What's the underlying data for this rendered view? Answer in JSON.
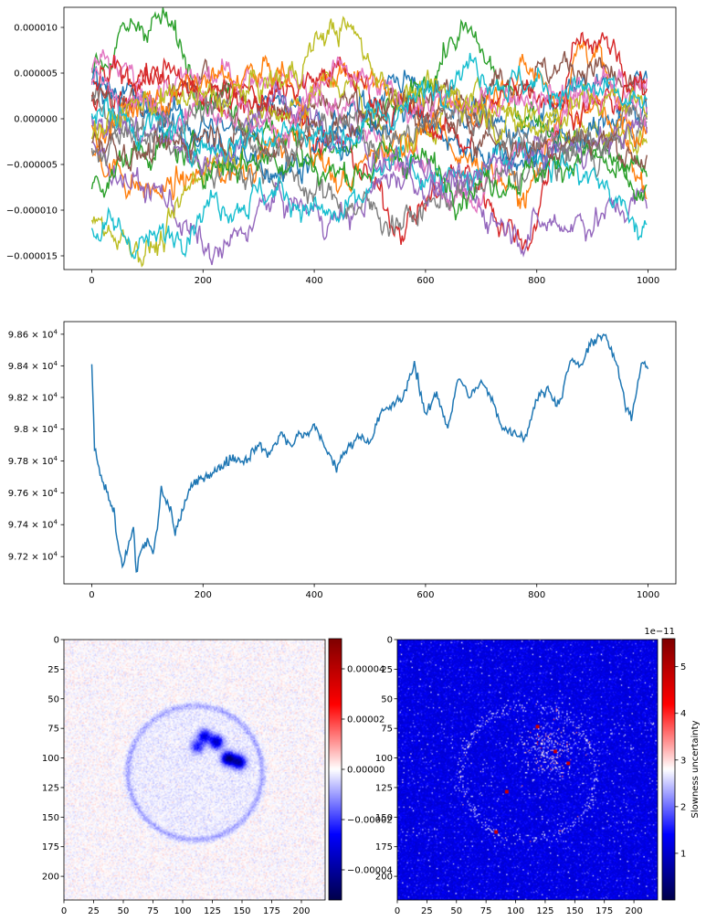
{
  "chart_data": [
    {
      "type": "line",
      "title": "",
      "xlabel": "",
      "ylabel": "",
      "xlim": [
        -50,
        1050
      ],
      "ylim": [
        -1.65e-05,
        1.22e-05
      ],
      "x_ticks": [
        {
          "value": 0,
          "label": "0"
        },
        {
          "value": 200,
          "label": "200"
        },
        {
          "value": 400,
          "label": "400"
        },
        {
          "value": 600,
          "label": "600"
        },
        {
          "value": 800,
          "label": "800"
        },
        {
          "value": 1000,
          "label": "1000"
        }
      ],
      "y_ticks": [
        {
          "value": 1e-05,
          "label": "0.000010"
        },
        {
          "value": 5e-06,
          "label": "0.000005"
        },
        {
          "value": 0,
          "label": "0.000000"
        },
        {
          "value": -5e-06,
          "label": "−0.000005"
        },
        {
          "value": -1e-05,
          "label": "−0.000010"
        },
        {
          "value": -1.5e-05,
          "label": "−0.000015"
        }
      ],
      "grid": false,
      "n_points": 1000,
      "series": [
        {
          "color": "#1f77b4",
          "values": [
            3e-06,
            2e-07,
            -4e-06,
            1.8e-06,
            -6e-07,
            4.4e-06,
            1e-06,
            -2e-06,
            3e-06,
            5e-07
          ]
        },
        {
          "color": "#ff7f0e",
          "values": [
            -4e-06,
            -8e-06,
            -6e-06,
            -3e-06,
            6e-06,
            2e-06,
            -4e-06,
            -8e-06,
            8e-06,
            -7e-06
          ]
        },
        {
          "color": "#2ca02c",
          "values": [
            6e-06,
            1.1e-05,
            3e-06,
            -2e-06,
            -4e-06,
            1e-06,
            9e-06,
            1e-06,
            -3e-06,
            -6e-06
          ]
        },
        {
          "color": "#d62728",
          "values": [
            2e-06,
            4e-06,
            3e-06,
            2e-06,
            -3e-06,
            -1.1e-05,
            -6e-06,
            -1.3e-05,
            9e-06,
            4e-06
          ]
        },
        {
          "color": "#9467bd",
          "values": [
            -4e-06,
            -8e-06,
            -1.5e-05,
            -9e-06,
            -1.1e-05,
            -6e-06,
            -9e-06,
            -1.2e-05,
            -1.1e-05,
            -9e-06
          ]
        },
        {
          "color": "#8c564b",
          "values": [
            2.5e-06,
            1.5e-06,
            4e-06,
            1e-06,
            2e-06,
            1e-06,
            3e-06,
            5e-06,
            6e-06,
            2e-06
          ]
        },
        {
          "color": "#e377c2",
          "values": [
            6e-06,
            3e-06,
            4.5e-06,
            5e-06,
            1e-06,
            -4e-06,
            -9e-06,
            -4e-06,
            4e-06,
            3e-06
          ]
        },
        {
          "color": "#7f7f7f",
          "values": [
            2e-06,
            -3e-06,
            -5e-06,
            -6e-06,
            -9e-06,
            -1.1e-05,
            -8e-06,
            -6e-06,
            -4e-06,
            -1e-06
          ]
        },
        {
          "color": "#bcbd22",
          "values": [
            -1.15e-05,
            -1.4e-05,
            -4e-06,
            1e-06,
            4e-06,
            -3e-06,
            2e-06,
            1e-06,
            -1e-06,
            -2e-06
          ]
        },
        {
          "color": "#17becf",
          "values": [
            -1.2e-05,
            -1.35e-05,
            -9e-06,
            -8e-06,
            -1.1e-05,
            -5e-06,
            -7e-06,
            -3e-06,
            -6e-06,
            -1.25e-05
          ]
        },
        {
          "color": "#1f77b4",
          "values": [
            5e-06,
            1e-06,
            -1e-06,
            -5e-06,
            -3e-06,
            1e-06,
            -3e-06,
            -4e-06,
            -2e-06,
            4e-06
          ]
        },
        {
          "color": "#ff7f0e",
          "values": [
            -1e-06,
            2e-06,
            4e-06,
            5e-06,
            -7e-06,
            -2e-06,
            1e-06,
            5e-06,
            1e-06,
            -2e-06
          ]
        },
        {
          "color": "#2ca02c",
          "values": [
            -6.5e-06,
            -3e-06,
            -5e-06,
            -4e-06,
            -6e-06,
            -4e-06,
            -7e-06,
            -6e-06,
            -4e-06,
            -9e-06
          ]
        },
        {
          "color": "#d62728",
          "values": [
            4e-06,
            5e-06,
            2e-06,
            3e-06,
            5e-06,
            1e-06,
            -2e-06,
            4e-06,
            1e-06,
            3e-06
          ]
        },
        {
          "color": "#9467bd",
          "values": [
            1e-06,
            -2e-06,
            -4e-06,
            2e-06,
            -2e-06,
            -5e-06,
            -7e-06,
            -4e-06,
            -3e-06,
            -1e-06
          ]
        },
        {
          "color": "#8c564b",
          "values": [
            -2e-06,
            -4e-06,
            -1e-06,
            -3e-06,
            -1e-06,
            2e-06,
            -1e-06,
            -3e-06,
            -2e-06,
            -4e-06
          ]
        },
        {
          "color": "#e377c2",
          "values": [
            3.5e-06,
            1e-06,
            2e-06,
            -1e-06,
            4.5e-06,
            2e-06,
            1e-06,
            3e-06,
            2e-06,
            1e-06
          ]
        },
        {
          "color": "#7f7f7f",
          "values": [
            -3e-06,
            -1e-06,
            1e-06,
            -3e-06,
            -1e-06,
            -2e-06,
            1e-06,
            -2e-06,
            -3e-06,
            1e-06
          ]
        },
        {
          "color": "#bcbd22",
          "values": [
            -1e-06,
            2e-06,
            2e-06,
            4e-06,
            1e-05,
            3e-06,
            2e-06,
            -1e-06,
            2e-06,
            2e-06
          ]
        },
        {
          "color": "#17becf",
          "values": [
            1e-06,
            -1e-06,
            -3e-06,
            -1e-06,
            -2e-06,
            1e-06,
            6e-06,
            4e-06,
            3e-06,
            1e-06
          ]
        }
      ]
    },
    {
      "type": "line",
      "title": "",
      "xlabel": "",
      "ylabel": "",
      "y_scale": "log",
      "xlim": [
        -50,
        1050
      ],
      "ylim": [
        97030,
        98680
      ],
      "x_ticks": [
        {
          "value": 0,
          "label": "0"
        },
        {
          "value": 200,
          "label": "200"
        },
        {
          "value": 400,
          "label": "400"
        },
        {
          "value": 600,
          "label": "600"
        },
        {
          "value": 800,
          "label": "800"
        },
        {
          "value": 1000,
          "label": "1000"
        }
      ],
      "y_ticks": [
        {
          "value": 98600,
          "mantissa": "9.86",
          "base": "10",
          "exp": "4"
        },
        {
          "value": 98400,
          "mantissa": "9.84",
          "base": "10",
          "exp": "4"
        },
        {
          "value": 98200,
          "mantissa": "9.82",
          "base": "10",
          "exp": "4"
        },
        {
          "value": 98000,
          "mantissa": "9.8",
          "base": "10",
          "exp": "4"
        },
        {
          "value": 97800,
          "mantissa": "9.78",
          "base": "10",
          "exp": "4"
        },
        {
          "value": 97600,
          "mantissa": "9.76",
          "base": "10",
          "exp": "4"
        },
        {
          "value": 97400,
          "mantissa": "9.74",
          "base": "10",
          "exp": "4"
        },
        {
          "value": 97200,
          "mantissa": "9.72",
          "base": "10",
          "exp": "4"
        }
      ],
      "grid": false,
      "series": [
        {
          "color": "#1f77b4",
          "x": [
            0,
            5,
            15,
            25,
            40,
            45,
            55,
            65,
            75,
            80,
            90,
            100,
            110,
            120,
            125,
            130,
            140,
            150,
            160,
            175,
            200,
            225,
            250,
            275,
            300,
            320,
            340,
            360,
            370,
            380,
            400,
            420,
            440,
            460,
            480,
            500,
            520,
            540,
            560,
            580,
            600,
            620,
            640,
            660,
            680,
            700,
            720,
            740,
            760,
            780,
            800,
            820,
            840,
            860,
            880,
            900,
            920,
            940,
            960,
            970,
            980,
            990,
            1000
          ],
          "values": [
            98410,
            97900,
            97700,
            97620,
            97480,
            97330,
            97150,
            97260,
            97380,
            97100,
            97260,
            97300,
            97210,
            97430,
            97640,
            97560,
            97520,
            97350,
            97450,
            97620,
            97700,
            97740,
            97820,
            97800,
            97900,
            97840,
            97980,
            97880,
            97980,
            97950,
            98020,
            97880,
            97760,
            97880,
            97960,
            97920,
            98100,
            98150,
            98200,
            98420,
            98080,
            98230,
            98010,
            98330,
            98200,
            98300,
            98180,
            98000,
            97980,
            97950,
            98200,
            98250,
            98150,
            98430,
            98400,
            98560,
            98600,
            98450,
            98150,
            98080,
            98260,
            98450,
            98380
          ]
        }
      ]
    },
    {
      "type": "heatmap",
      "title": "",
      "xlabel": "",
      "ylabel": "",
      "colormap": "seismic",
      "grid_size": 220,
      "xlim": [
        0,
        220
      ],
      "ylim": [
        220,
        0
      ],
      "x_ticks": [
        {
          "value": 0,
          "label": "0"
        },
        {
          "value": 25,
          "label": "25"
        },
        {
          "value": 50,
          "label": "50"
        },
        {
          "value": 75,
          "label": "75"
        },
        {
          "value": 100,
          "label": "100"
        },
        {
          "value": 125,
          "label": "125"
        },
        {
          "value": 150,
          "label": "150"
        },
        {
          "value": 175,
          "label": "175"
        },
        {
          "value": 200,
          "label": "200"
        }
      ],
      "y_ticks": [
        {
          "value": 0,
          "label": "0"
        },
        {
          "value": 25,
          "label": "25"
        },
        {
          "value": 50,
          "label": "50"
        },
        {
          "value": 75,
          "label": "75"
        },
        {
          "value": 100,
          "label": "100"
        },
        {
          "value": 125,
          "label": "125"
        },
        {
          "value": 150,
          "label": "150"
        },
        {
          "value": 175,
          "label": "175"
        },
        {
          "value": 200,
          "label": "200"
        }
      ],
      "features": {
        "ring_center": [
          110,
          112
        ],
        "ring_radius": 57,
        "blobs": [
          {
            "center": [
              118,
              81
            ],
            "intensity": -2.8e-05
          },
          {
            "center": [
              128,
              86
            ],
            "intensity": -3.4e-05
          },
          {
            "center": [
              138,
              100
            ],
            "intensity": -4.4e-05
          },
          {
            "center": [
              147,
              103
            ],
            "intensity": -3.8e-05
          },
          {
            "center": [
              112,
              90
            ],
            "intensity": -2.2e-05
          }
        ]
      },
      "colorbar": {
        "range": [
          -5.2e-05,
          5.2e-05
        ],
        "ticks": [
          {
            "value": 4e-05,
            "label": "0.00004"
          },
          {
            "value": 2e-05,
            "label": "0.00002"
          },
          {
            "value": 0,
            "label": "0.00000"
          },
          {
            "value": -2e-05,
            "label": "−0.00002"
          },
          {
            "value": -4e-05,
            "label": "−0.00004"
          }
        ]
      }
    },
    {
      "type": "heatmap",
      "title": "",
      "xlabel": "",
      "ylabel": "",
      "colormap": "seismic",
      "grid_size": 220,
      "xlim": [
        0,
        220
      ],
      "ylim": [
        220,
        0
      ],
      "x_ticks": [
        {
          "value": 0,
          "label": "0"
        },
        {
          "value": 25,
          "label": "25"
        },
        {
          "value": 50,
          "label": "50"
        },
        {
          "value": 75,
          "label": "75"
        },
        {
          "value": 100,
          "label": "100"
        },
        {
          "value": 125,
          "label": "125"
        },
        {
          "value": 150,
          "label": "150"
        },
        {
          "value": 175,
          "label": "175"
        },
        {
          "value": 200,
          "label": "200"
        }
      ],
      "y_ticks": [
        {
          "value": 0,
          "label": "0"
        },
        {
          "value": 25,
          "label": "25"
        },
        {
          "value": 50,
          "label": "50"
        },
        {
          "value": 75,
          "label": "75"
        },
        {
          "value": 100,
          "label": "100"
        },
        {
          "value": 125,
          "label": "125"
        },
        {
          "value": 150,
          "label": "150"
        },
        {
          "value": 175,
          "label": "175"
        },
        {
          "value": 200,
          "label": "200"
        }
      ],
      "features": {
        "ring_center": [
          110,
          112
        ],
        "ring_radius": 57,
        "hotspots": [
          [
            133,
            94
          ],
          [
            144,
            104
          ],
          [
            118,
            73
          ],
          [
            92,
            128
          ],
          [
            83,
            162
          ]
        ]
      },
      "colorbar": {
        "range": [
          0,
          5.6e-11
        ],
        "offset_label": "1e−11",
        "label": "Slowness uncertainty",
        "ticks": [
          {
            "value": 1e-11,
            "label": "1"
          },
          {
            "value": 2e-11,
            "label": "2"
          },
          {
            "value": 3e-11,
            "label": "3"
          },
          {
            "value": 4e-11,
            "label": "4"
          },
          {
            "value": 5e-11,
            "label": "5"
          }
        ]
      }
    }
  ]
}
